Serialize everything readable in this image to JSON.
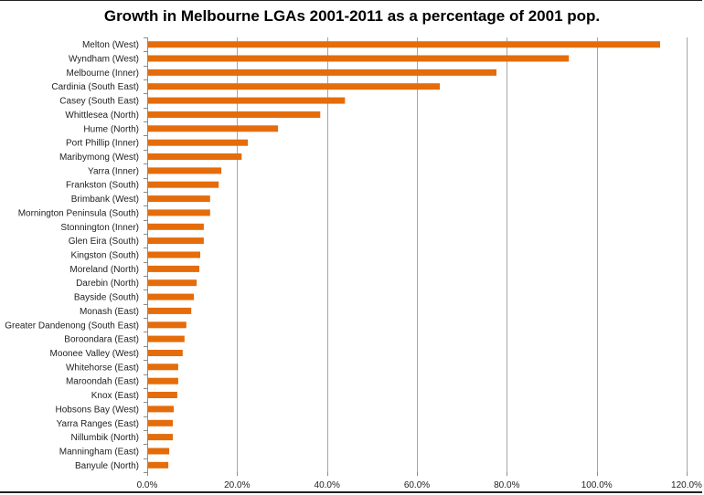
{
  "chart_data": {
    "type": "bar",
    "orientation": "horizontal",
    "title": "Growth in Melbourne LGAs 2001-2011 as a percentage of 2001 pop.",
    "xlabel": "",
    "ylabel": "",
    "xlim": [
      0,
      120
    ],
    "grid": true,
    "legend": "none",
    "bar_color": "#e46c0a",
    "tick_labels": [
      "0.0%",
      "20.0%",
      "40.0%",
      "60.0%",
      "80.0%",
      "100.0%",
      "120.0%"
    ],
    "tick_values": [
      0,
      20,
      40,
      60,
      80,
      100,
      120
    ],
    "categories": [
      "Melton (West)",
      "Wyndham (West)",
      "Melbourne (Inner)",
      "Cardinia (South East)",
      "Casey (South East)",
      "Whittlesea (North)",
      "Hume (North)",
      "Port Phillip (Inner)",
      "Maribymong (West)",
      "Yarra (Inner)",
      "Frankston (South)",
      "Brimbank (West)",
      "Mornington Peninsula (South)",
      "Stonnington (Inner)",
      "Glen Eira (South)",
      "Kingston (South)",
      "Moreland (North)",
      "Darebin (North)",
      "Bayside (South)",
      "Monash (East)",
      "Greater Dandenong (South East)",
      "Boroondara (East)",
      "Moonee Valley (West)",
      "Whitehorse (East)",
      "Maroondah (East)",
      "Knox (East)",
      "Hobsons Bay (West)",
      "Yarra Ranges (East)",
      "Nillumbik (North)",
      "Manningham (East)",
      "Banyule (North)"
    ],
    "values": [
      114.1,
      93.8,
      77.7,
      65.1,
      44.0,
      38.5,
      29.1,
      22.4,
      21.0,
      16.5,
      15.9,
      14.0,
      14.0,
      12.6,
      12.6,
      11.8,
      11.6,
      11.0,
      10.4,
      9.8,
      8.7,
      8.3,
      7.9,
      6.9,
      6.9,
      6.7,
      5.9,
      5.7,
      5.7,
      4.9,
      4.7
    ]
  }
}
